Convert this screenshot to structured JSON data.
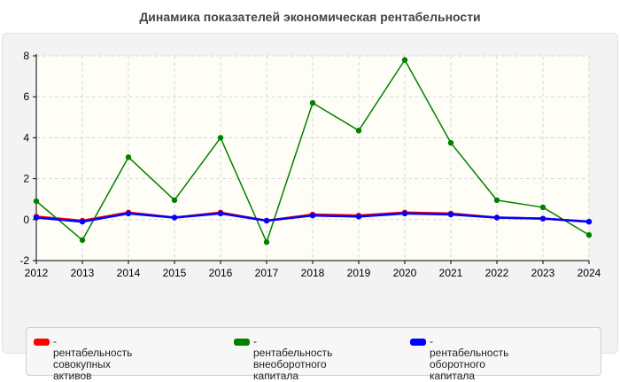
{
  "title": "Динамика показателей экономическая рентабельности",
  "legend": {
    "items": [
      {
        "label": "- рентабельность совокупных\nактивов",
        "color": "#ff0000"
      },
      {
        "label": "- рентабельность\nвнеоборотного капитала",
        "color": "#008000"
      },
      {
        "label": "- рентабельность оборотного\nкапитала",
        "color": "#0000ff"
      }
    ]
  },
  "chart_data": {
    "type": "line",
    "title": "Динамика показателей экономическая рентабельности",
    "xlabel": "",
    "ylabel": "",
    "categories": [
      "2012",
      "2013",
      "2014",
      "2015",
      "2016",
      "2017",
      "2018",
      "2019",
      "2020",
      "2021",
      "2022",
      "2023",
      "2024"
    ],
    "ylim": [
      -2,
      8
    ],
    "yticks": [
      -2,
      0,
      2,
      4,
      6,
      8
    ],
    "grid": true,
    "legend_position": "bottom",
    "series": [
      {
        "name": "- рентабельность совокупных активов",
        "color": "#ff0000",
        "values": [
          0.15,
          -0.05,
          0.35,
          0.1,
          0.35,
          -0.05,
          0.25,
          0.2,
          0.35,
          0.3,
          0.1,
          0.05,
          -0.1
        ]
      },
      {
        "name": "- рентабельность внеоборотного капитала",
        "color": "#008000",
        "values": [
          0.9,
          -1.0,
          3.05,
          0.95,
          4.0,
          -1.1,
          5.7,
          4.35,
          7.8,
          3.75,
          0.95,
          0.6,
          -0.75
        ]
      },
      {
        "name": "- рентабельность оборотного капитала",
        "color": "#0000ff",
        "values": [
          0.1,
          -0.1,
          0.3,
          0.1,
          0.3,
          -0.05,
          0.2,
          0.15,
          0.3,
          0.25,
          0.1,
          0.05,
          -0.1
        ]
      }
    ]
  }
}
